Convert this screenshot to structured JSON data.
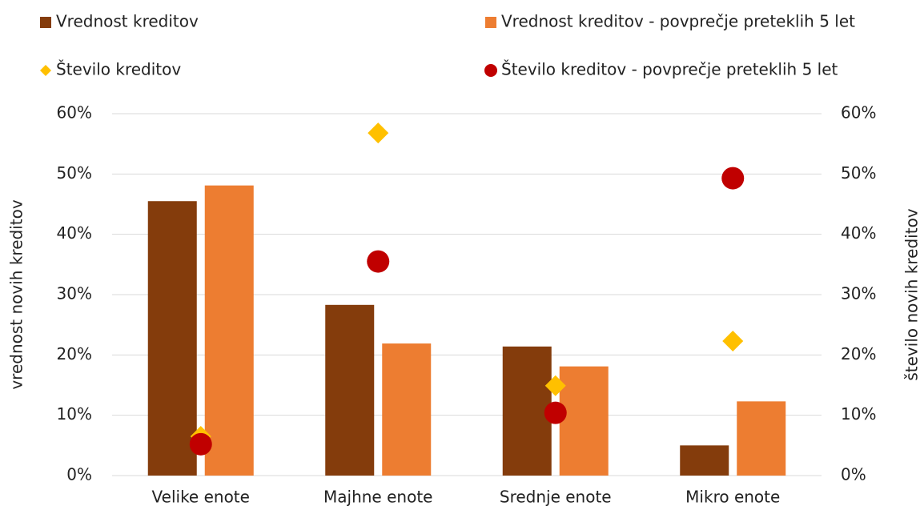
{
  "chart_data": {
    "type": "bar",
    "categories": [
      "Velike enote",
      "Majhne enote",
      "Srednje enote",
      "Mikro enote"
    ],
    "series": [
      {
        "name": "Vrednost kreditov",
        "type": "bar",
        "color": "#843c0c",
        "values": [
          45.5,
          28.3,
          21.4,
          5.0
        ]
      },
      {
        "name": "Vrednost kreditov - povprečje preteklih 5 let",
        "type": "bar",
        "color": "#ed7d31",
        "values": [
          48.1,
          21.9,
          18.1,
          12.3
        ]
      },
      {
        "name": "Število kreditov",
        "type": "scatter",
        "marker": "diamond",
        "axis": "y2",
        "color": "#ffc000",
        "values": [
          6.5,
          56.8,
          14.9,
          22.3
        ]
      },
      {
        "name": "Število kreditov - povprečje preteklih 5 let",
        "type": "scatter",
        "marker": "circle",
        "axis": "y2",
        "color": "#c00000",
        "values": [
          5.2,
          35.5,
          10.4,
          49.3
        ]
      }
    ],
    "ylabel": "vrednost novih kreditov",
    "y2label": "število novih kreditov",
    "ylim": [
      0,
      60
    ],
    "yticks": [
      {
        "value": 0,
        "label": "0%"
      },
      {
        "value": 10,
        "label": "10%"
      },
      {
        "value": 20,
        "label": "20%"
      },
      {
        "value": 30,
        "label": "30%"
      },
      {
        "value": 40,
        "label": "40%"
      },
      {
        "value": 50,
        "label": "50%"
      },
      {
        "value": 60,
        "label": "60%"
      }
    ],
    "y2lim": [
      0,
      60
    ],
    "y2ticks": [
      {
        "value": 0,
        "label": "0%"
      },
      {
        "value": 10,
        "label": "10%"
      },
      {
        "value": 20,
        "label": "20%"
      },
      {
        "value": 30,
        "label": "30%"
      },
      {
        "value": 40,
        "label": "40%"
      },
      {
        "value": 50,
        "label": "50%"
      },
      {
        "value": 60,
        "label": "60%"
      }
    ],
    "grid": true,
    "legend": "top"
  }
}
